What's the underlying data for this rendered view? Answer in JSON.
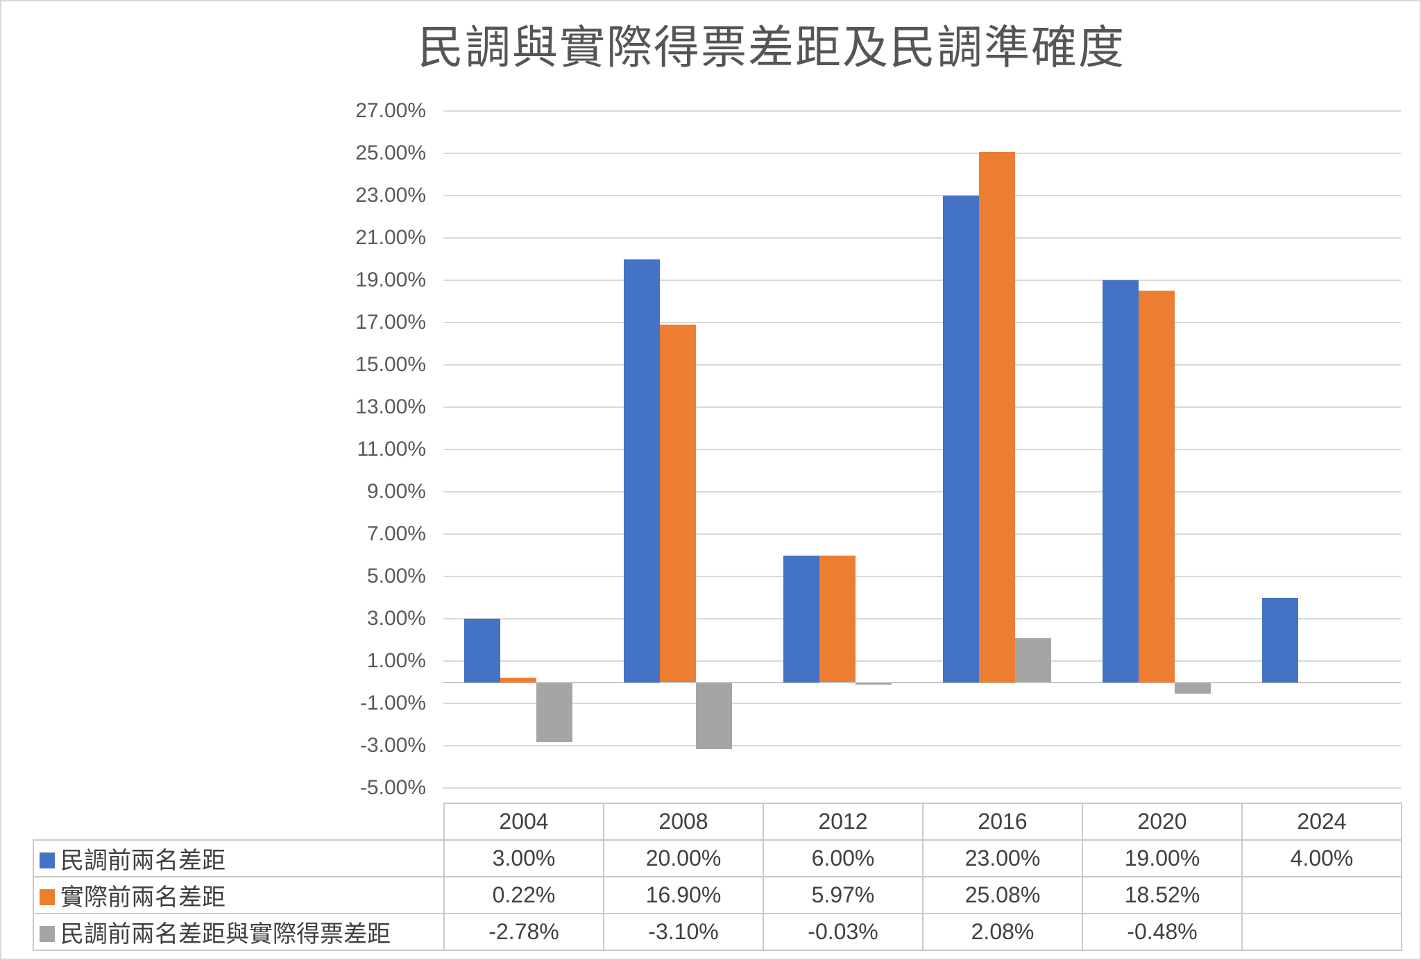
{
  "chart_data": {
    "type": "bar",
    "title": "民調與實際得票差距及民調準確度",
    "categories": [
      "2004",
      "2008",
      "2012",
      "2016",
      "2020",
      "2024"
    ],
    "series": [
      {
        "name": "民調前兩名差距",
        "color": "#4472C4",
        "values": [
          3.0,
          20.0,
          6.0,
          23.0,
          19.0,
          4.0
        ],
        "labels": [
          "3.00%",
          "20.00%",
          "6.00%",
          "23.00%",
          "19.00%",
          "4.00%"
        ]
      },
      {
        "name": "實際前兩名差距",
        "color": "#ED7D31",
        "values": [
          0.22,
          16.9,
          5.97,
          25.08,
          18.52,
          null
        ],
        "labels": [
          "0.22%",
          "16.90%",
          "5.97%",
          "25.08%",
          "18.52%",
          ""
        ]
      },
      {
        "name": "民調前兩名差距與實際得票差距",
        "color": "#A5A5A5",
        "values": [
          -2.78,
          -3.1,
          -0.03,
          2.08,
          -0.48,
          null
        ],
        "labels": [
          "-2.78%",
          "-3.10%",
          "-0.03%",
          "2.08%",
          "-0.48%",
          ""
        ]
      }
    ],
    "ylim": [
      -5,
      27
    ],
    "ytick_step": 2,
    "yticks": [
      "27.00%",
      "25.00%",
      "23.00%",
      "21.00%",
      "19.00%",
      "17.00%",
      "15.00%",
      "13.00%",
      "11.00%",
      "9.00%",
      "7.00%",
      "5.00%",
      "3.00%",
      "1.00%",
      "-1.00%",
      "-3.00%",
      "-5.00%"
    ],
    "grid": true,
    "legend_position": "data-table-left",
    "colors": {
      "gridline": "#D9D9D9",
      "axis_line": "#C6C6C6",
      "table_border": "#C9C9C9",
      "axis_text": "#595959",
      "table_text": "#404040",
      "title_text": "#555555",
      "background": "#FFFFFF"
    }
  }
}
